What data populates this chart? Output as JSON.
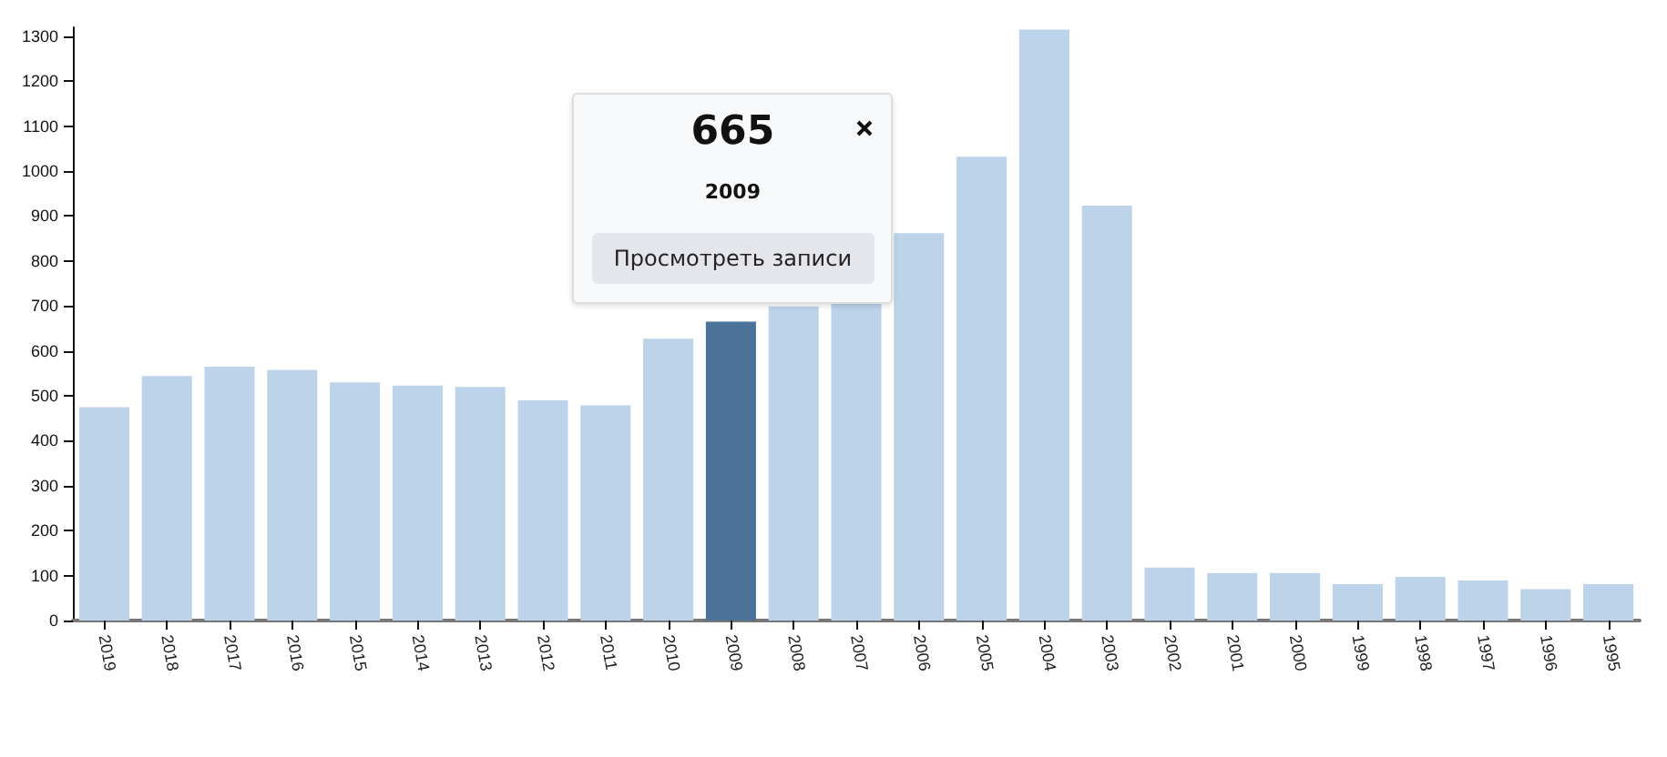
{
  "chart_data": {
    "type": "bar",
    "categories": [
      "2019",
      "2018",
      "2017",
      "2016",
      "2015",
      "2014",
      "2013",
      "2012",
      "2011",
      "2010",
      "2009",
      "2008",
      "2007",
      "2006",
      "2005",
      "2004",
      "2003",
      "2002",
      "2001",
      "2000",
      "1999",
      "1998",
      "1997",
      "1996",
      "1995"
    ],
    "values": [
      475,
      544,
      565,
      558,
      530,
      523,
      520,
      490,
      479,
      627,
      665,
      699,
      707,
      862,
      1032,
      1315,
      923,
      118,
      106,
      106,
      81,
      97,
      89,
      70,
      81
    ],
    "colors": [
      "#bcd3ea",
      "#bcd3ea",
      "#bcd3ea",
      "#bcd3ea",
      "#bcd3ea",
      "#bcd3ea",
      "#bcd3ea",
      "#bcd3ea",
      "#bcd3ea",
      "#bcd3ea",
      "#4b7399",
      "#bcd3ea",
      "#bcd3ea",
      "#bcd3ea",
      "#bcd3ea",
      "#bcd3ea",
      "#bcd3ea",
      "#bcd3ea",
      "#bcd3ea",
      "#bcd3ea",
      "#bcd3ea",
      "#bcd3ea",
      "#bcd3ea",
      "#bcd3ea",
      "#bcd3ea"
    ],
    "annotations": [
      "665",
      "2009",
      "Просмотреть записи"
    ],
    "ylim": [
      0,
      1320
    ],
    "yticks": [
      0,
      100,
      200,
      300,
      400,
      500,
      600,
      700,
      800,
      900,
      1000,
      1100,
      1200,
      1300
    ],
    "grid": false
  }
}
